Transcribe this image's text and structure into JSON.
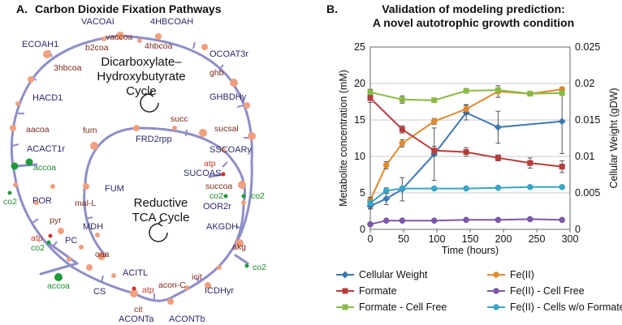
{
  "panel_a": {
    "label": "A.",
    "title": "Carbon Dioxide Fixation Pathways",
    "cycle_top": [
      "Dicarboxylate–",
      "Hydroxybutyrate",
      "Cycle"
    ],
    "cycle_bottom": [
      "Reductive",
      "TCA Cycle"
    ],
    "colors": {
      "pathway": "#8e8ec8",
      "metabolite": "#f0a07e",
      "cofactor_green": "#1e9a3a",
      "cofactor_red": "#d23030"
    },
    "enzymes": [
      "VACOAI",
      "4HBCOAH",
      "ECOAH1",
      "OCOAT3r",
      "HACD1",
      "GHBDHy",
      "FRD2rpp",
      "SSCOARy",
      "ACACT1r",
      "SUCOAS",
      "POR",
      "OOR2r",
      "AKGDH",
      "FUM",
      "MDH",
      "PC",
      "ACITL",
      "ICDHyr",
      "CS",
      "ACONTa",
      "ACONTb"
    ],
    "metabolites": [
      "vaccoa",
      "b2coa",
      "4hbcoa",
      "3hbcoa",
      "ghb",
      "aacoa",
      "sucsal",
      "fum",
      "succ",
      "succoa",
      "mal-L",
      "pyr",
      "akg",
      "oaa",
      "acon-C",
      "icit",
      "cit"
    ],
    "cofactors": {
      "accoa_top": "accoa",
      "accoa_bottom": "accoa",
      "co2_left": "co2",
      "co2_pc": "co2",
      "co2_right_top": "co2",
      "co2_right_mid": "co2",
      "co2_oor": "co2",
      "atp_pc": "atp",
      "atp_sucoas": "atp",
      "atp_acitl": "atp"
    }
  },
  "panel_b": {
    "label": "B.",
    "title_line1": "Validation of modeling prediction:",
    "title_line2": "A novel autotrophic growth condition"
  },
  "chart_data": {
    "type": "line",
    "xlabel": "Time (hours)",
    "ylabel": "Metabolite concentration (mM)",
    "y2label": "Cellular Weight (gDW)",
    "xlim": [
      0,
      300
    ],
    "ylim": [
      0,
      25
    ],
    "y2lim": [
      0,
      0.025
    ],
    "xticks": [
      "0",
      "50",
      "100",
      "150",
      "200",
      "250",
      "300"
    ],
    "yticks": [
      "0",
      "5",
      "10",
      "15",
      "20",
      "25"
    ],
    "y2ticks": [
      "0",
      "0.005",
      "0.01",
      "0.015",
      "0.02",
      "0.025"
    ],
    "grid": true,
    "legend_position": "bottom",
    "series": [
      {
        "name": "Cellular Weight",
        "axis": "right",
        "color": "#3d78b5",
        "marker": "diamond",
        "x": [
          0,
          24,
          48,
          96,
          144,
          192,
          288
        ],
        "y": [
          0.0032,
          0.0042,
          0.0055,
          0.0103,
          0.016,
          0.014,
          0.0148
        ],
        "err": [
          0.0004,
          0.0008,
          0.0016,
          0.0036,
          0.001,
          0.0022,
          0.0044
        ]
      },
      {
        "name": "Fe(II)",
        "axis": "left",
        "color": "#e08a2e",
        "marker": "circle",
        "x": [
          0,
          24,
          48,
          96,
          144,
          192,
          240,
          288
        ],
        "y": [
          4,
          8.8,
          11.8,
          14.8,
          16.5,
          18.9,
          18.6,
          19.2
        ],
        "err": [
          0.3,
          0.5,
          0.5,
          0.4,
          0.6,
          0.8,
          0.3,
          0.3
        ]
      },
      {
        "name": "Formate",
        "axis": "left",
        "color": "#b83c3c",
        "marker": "square",
        "x": [
          0,
          48,
          96,
          144,
          192,
          240,
          288
        ],
        "y": [
          18,
          13.7,
          10.8,
          10.6,
          9.8,
          9.1,
          8.6
        ],
        "err": [
          0.6,
          0.5,
          0.6,
          0.6,
          0.4,
          0.7,
          0.8
        ]
      },
      {
        "name": "Fe(II) - Cell Free",
        "axis": "left",
        "color": "#7a58a6",
        "marker": "circle",
        "x": [
          0,
          24,
          48,
          96,
          144,
          192,
          240,
          288
        ],
        "y": [
          0.7,
          1.2,
          1.2,
          1.2,
          1.3,
          1.3,
          1.4,
          1.3
        ],
        "err": [
          0.1,
          0.1,
          0.1,
          0.1,
          0.1,
          0.1,
          0.1,
          0.1
        ]
      },
      {
        "name": "Formate - Cell Free",
        "axis": "left",
        "color": "#8aba45",
        "marker": "square",
        "x": [
          0,
          48,
          96,
          144,
          192,
          240,
          288
        ],
        "y": [
          18.8,
          17.8,
          17.7,
          19.0,
          19.1,
          18.6,
          18.7
        ],
        "err": [
          0.4,
          0.5,
          0.3,
          0.3,
          0.3,
          0.3,
          0.3
        ]
      },
      {
        "name": "Fe(II) - Cells w/o Formate",
        "axis": "left",
        "color": "#3aa6c4",
        "marker": "circle",
        "x": [
          0,
          24,
          48,
          96,
          144,
          192,
          240,
          288
        ],
        "y": [
          3.6,
          5.3,
          5.6,
          5.6,
          5.6,
          5.7,
          5.8,
          5.8
        ],
        "err": [
          0.8,
          0.4,
          0.3,
          0.2,
          0.2,
          0.2,
          0.2,
          0.2
        ]
      }
    ]
  }
}
